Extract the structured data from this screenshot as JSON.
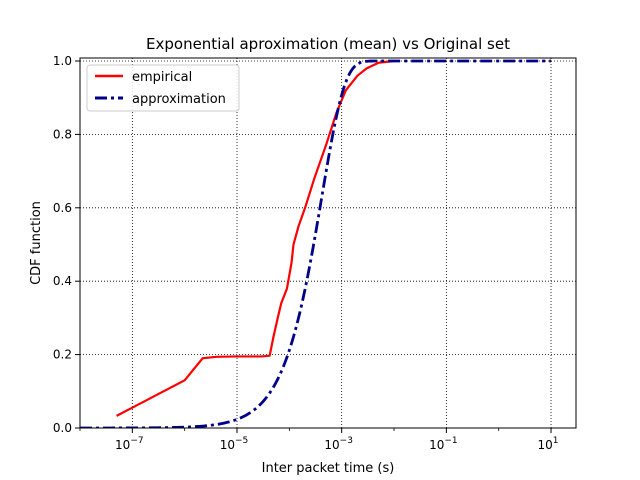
{
  "chart_data": {
    "type": "line",
    "title": "Exponential aproximation (mean) vs Original set",
    "xlabel": "Inter packet time (s)",
    "ylabel": "CDF function",
    "xscale": "log",
    "xlim": [
      1e-08,
      30
    ],
    "ylim": [
      0,
      1.0
    ],
    "x_ticks": [
      {
        "value": 1e-07,
        "base": "10",
        "exp": "−7"
      },
      {
        "value": 1e-05,
        "base": "10",
        "exp": "−5"
      },
      {
        "value": 0.001,
        "base": "10",
        "exp": "−3"
      },
      {
        "value": 0.1,
        "base": "10",
        "exp": "−1"
      },
      {
        "value": 10,
        "base": "10",
        "exp": "1"
      }
    ],
    "y_ticks": [
      "0.0",
      "0.2",
      "0.4",
      "0.6",
      "0.8",
      "1.0"
    ],
    "y_tick_values": [
      0,
      0.2,
      0.4,
      0.6,
      0.8,
      1.0
    ],
    "grid": true,
    "grid_style": "dotted",
    "legend_position": "upper-left",
    "series": [
      {
        "name": "empirical",
        "color": "#ff0000",
        "style": "solid",
        "points": [
          [
            5e-08,
            0.033
          ],
          [
            1e-06,
            0.13
          ],
          [
            2.2e-06,
            0.19
          ],
          [
            4e-06,
            0.194
          ],
          [
            1e-05,
            0.195
          ],
          [
            3e-05,
            0.195
          ],
          [
            4.2e-05,
            0.197
          ],
          [
            5e-05,
            0.25
          ],
          [
            6e-05,
            0.3
          ],
          [
            7e-05,
            0.34
          ],
          [
            9e-05,
            0.38
          ],
          [
            0.00011,
            0.45
          ],
          [
            0.00012,
            0.5
          ],
          [
            0.00015,
            0.55
          ],
          [
            0.0002,
            0.6
          ],
          [
            0.0003,
            0.68
          ],
          [
            0.0005,
            0.77
          ],
          [
            0.0008,
            0.86
          ],
          [
            0.0012,
            0.92
          ],
          [
            0.002,
            0.96
          ],
          [
            0.003,
            0.98
          ],
          [
            0.005,
            0.995
          ],
          [
            0.01,
            1.0
          ]
        ]
      },
      {
        "name": "approximation",
        "color": "#00008b",
        "style": "dashdot",
        "mean": 0.00042,
        "x_range": [
          1e-08,
          10
        ]
      }
    ]
  }
}
